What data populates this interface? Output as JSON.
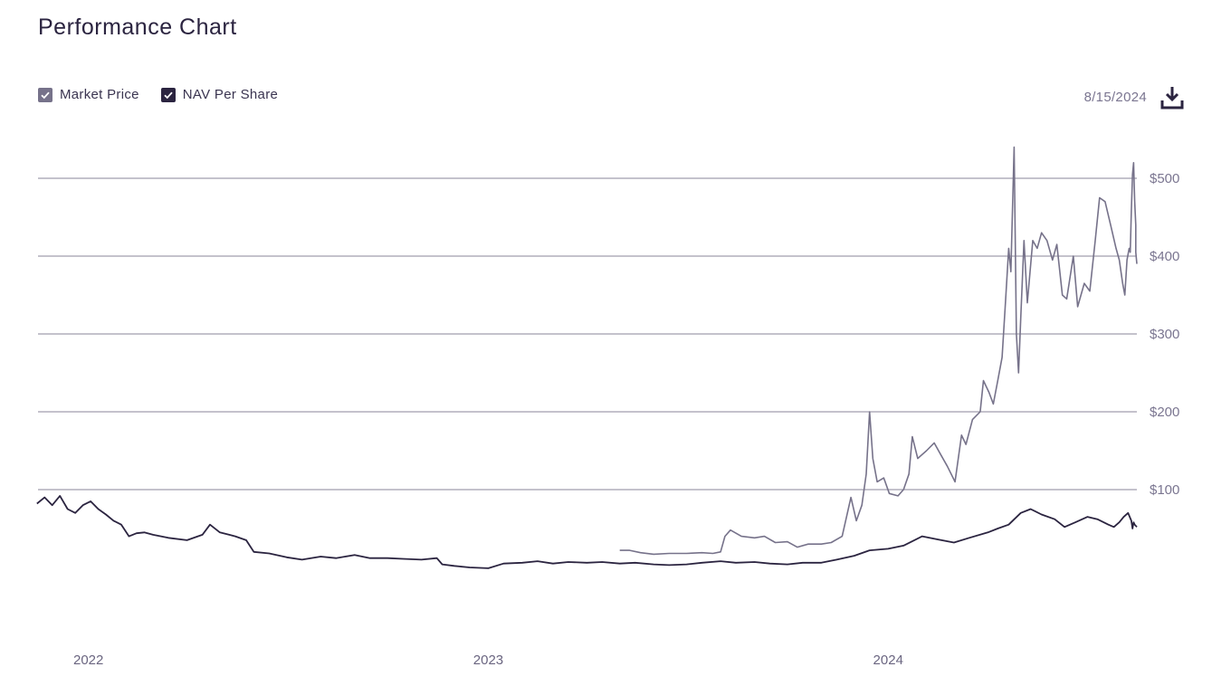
{
  "header": {
    "title": "Performance Chart",
    "date": "8/15/2024"
  },
  "legend": [
    {
      "label": "Market Price",
      "color": "#76728a",
      "checked": true
    },
    {
      "label": "NAV Per Share",
      "color": "#2b2440",
      "checked": true
    }
  ],
  "icons": {
    "download": "download-icon",
    "check": "check-icon"
  },
  "chart_data": {
    "type": "line",
    "title": "Performance Chart",
    "xlabel": "",
    "ylabel": "",
    "x_ticks": [
      "2022",
      "2023",
      "2024"
    ],
    "y_ticks": [
      "$100",
      "$200",
      "$300",
      "$400",
      "$500"
    ],
    "y_tick_values": [
      100,
      200,
      300,
      400,
      500
    ],
    "ylim": [
      -100,
      540
    ],
    "xlim": [
      "2021-11-15",
      "2024-08-15"
    ],
    "grid": "horizontal",
    "legend_position": "top-left",
    "series": [
      {
        "name": "Market Price",
        "color": "#76728a",
        "points": [
          [
            "2023-05-01",
            22
          ],
          [
            "2023-05-10",
            22
          ],
          [
            "2023-05-20",
            19
          ],
          [
            "2023-06-01",
            17
          ],
          [
            "2023-06-15",
            18
          ],
          [
            "2023-07-01",
            18
          ],
          [
            "2023-07-15",
            19
          ],
          [
            "2023-07-25",
            18
          ],
          [
            "2023-08-01",
            20
          ],
          [
            "2023-08-05",
            40
          ],
          [
            "2023-08-10",
            48
          ],
          [
            "2023-08-20",
            40
          ],
          [
            "2023-09-01",
            38
          ],
          [
            "2023-09-10",
            40
          ],
          [
            "2023-09-20",
            32
          ],
          [
            "2023-10-01",
            33
          ],
          [
            "2023-10-10",
            26
          ],
          [
            "2023-10-20",
            30
          ],
          [
            "2023-11-01",
            30
          ],
          [
            "2023-11-10",
            32
          ],
          [
            "2023-11-20",
            40
          ],
          [
            "2023-11-28",
            90
          ],
          [
            "2023-12-03",
            60
          ],
          [
            "2023-12-08",
            80
          ],
          [
            "2023-12-12",
            120
          ],
          [
            "2023-12-15",
            200
          ],
          [
            "2023-12-18",
            140
          ],
          [
            "2023-12-22",
            110
          ],
          [
            "2023-12-28",
            115
          ],
          [
            "2024-01-02",
            95
          ],
          [
            "2024-01-10",
            92
          ],
          [
            "2024-01-15",
            100
          ],
          [
            "2024-01-20",
            120
          ],
          [
            "2024-01-23",
            168
          ],
          [
            "2024-01-28",
            140
          ],
          [
            "2024-02-05",
            150
          ],
          [
            "2024-02-12",
            160
          ],
          [
            "2024-02-18",
            145
          ],
          [
            "2024-02-24",
            130
          ],
          [
            "2024-03-02",
            110
          ],
          [
            "2024-03-08",
            170
          ],
          [
            "2024-03-12",
            158
          ],
          [
            "2024-03-18",
            190
          ],
          [
            "2024-03-25",
            200
          ],
          [
            "2024-03-28",
            240
          ],
          [
            "2024-04-02",
            225
          ],
          [
            "2024-04-06",
            210
          ],
          [
            "2024-04-10",
            240
          ],
          [
            "2024-04-14",
            270
          ],
          [
            "2024-04-17",
            340
          ],
          [
            "2024-04-20",
            410
          ],
          [
            "2024-04-22",
            380
          ],
          [
            "2024-04-25",
            540
          ],
          [
            "2024-04-27",
            300
          ],
          [
            "2024-04-29",
            250
          ],
          [
            "2024-05-01",
            320
          ],
          [
            "2024-05-04",
            420
          ],
          [
            "2024-05-07",
            340
          ],
          [
            "2024-05-12",
            420
          ],
          [
            "2024-05-16",
            410
          ],
          [
            "2024-05-20",
            430
          ],
          [
            "2024-05-25",
            420
          ],
          [
            "2024-05-30",
            395
          ],
          [
            "2024-06-03",
            415
          ],
          [
            "2024-06-08",
            350
          ],
          [
            "2024-06-12",
            345
          ],
          [
            "2024-06-18",
            400
          ],
          [
            "2024-06-22",
            335
          ],
          [
            "2024-06-28",
            365
          ],
          [
            "2024-07-03",
            355
          ],
          [
            "2024-07-08",
            420
          ],
          [
            "2024-07-12",
            475
          ],
          [
            "2024-07-17",
            470
          ],
          [
            "2024-07-22",
            440
          ],
          [
            "2024-07-27",
            410
          ],
          [
            "2024-07-30",
            395
          ],
          [
            "2024-08-02",
            365
          ],
          [
            "2024-08-04",
            350
          ],
          [
            "2024-08-06",
            395
          ],
          [
            "2024-08-08",
            410
          ],
          [
            "2024-08-09",
            405
          ],
          [
            "2024-08-10",
            458
          ],
          [
            "2024-08-11",
            505
          ],
          [
            "2024-08-12",
            520
          ],
          [
            "2024-08-13",
            470
          ],
          [
            "2024-08-14",
            440
          ],
          [
            "2024-08-14",
            405
          ],
          [
            "2024-08-15",
            390
          ]
        ]
      },
      {
        "name": "NAV Per Share",
        "color": "#2b2440",
        "points": [
          [
            "2021-11-15",
            82
          ],
          [
            "2021-11-22",
            90
          ],
          [
            "2021-11-29",
            80
          ],
          [
            "2021-12-06",
            92
          ],
          [
            "2021-12-13",
            75
          ],
          [
            "2021-12-20",
            70
          ],
          [
            "2021-12-27",
            80
          ],
          [
            "2022-01-03",
            85
          ],
          [
            "2022-01-10",
            75
          ],
          [
            "2022-01-17",
            68
          ],
          [
            "2022-01-24",
            60
          ],
          [
            "2022-01-31",
            55
          ],
          [
            "2022-02-07",
            40
          ],
          [
            "2022-02-14",
            44
          ],
          [
            "2022-02-21",
            45
          ],
          [
            "2022-03-01",
            42
          ],
          [
            "2022-03-15",
            38
          ],
          [
            "2022-04-01",
            35
          ],
          [
            "2022-04-15",
            42
          ],
          [
            "2022-04-22",
            55
          ],
          [
            "2022-05-01",
            45
          ],
          [
            "2022-05-15",
            40
          ],
          [
            "2022-05-25",
            35
          ],
          [
            "2022-06-01",
            20
          ],
          [
            "2022-06-15",
            18
          ],
          [
            "2022-07-01",
            13
          ],
          [
            "2022-07-15",
            10
          ],
          [
            "2022-08-01",
            14
          ],
          [
            "2022-08-15",
            12
          ],
          [
            "2022-09-01",
            16
          ],
          [
            "2022-09-15",
            12
          ],
          [
            "2022-10-01",
            12
          ],
          [
            "2022-10-15",
            11
          ],
          [
            "2022-11-01",
            10
          ],
          [
            "2022-11-15",
            12
          ],
          [
            "2022-11-20",
            4
          ],
          [
            "2022-12-01",
            2
          ],
          [
            "2022-12-15",
            0
          ],
          [
            "2023-01-01",
            -1
          ],
          [
            "2023-01-15",
            5
          ],
          [
            "2023-02-01",
            6
          ],
          [
            "2023-02-15",
            8
          ],
          [
            "2023-03-01",
            5
          ],
          [
            "2023-03-15",
            7
          ],
          [
            "2023-04-01",
            6
          ],
          [
            "2023-04-15",
            7
          ],
          [
            "2023-05-01",
            5
          ],
          [
            "2023-05-15",
            6
          ],
          [
            "2023-06-01",
            4
          ],
          [
            "2023-06-15",
            3
          ],
          [
            "2023-07-01",
            4
          ],
          [
            "2023-07-15",
            6
          ],
          [
            "2023-08-01",
            8
          ],
          [
            "2023-08-15",
            6
          ],
          [
            "2023-09-01",
            7
          ],
          [
            "2023-09-15",
            5
          ],
          [
            "2023-10-01",
            4
          ],
          [
            "2023-10-15",
            6
          ],
          [
            "2023-11-01",
            6
          ],
          [
            "2023-11-15",
            10
          ],
          [
            "2023-12-01",
            15
          ],
          [
            "2023-12-15",
            22
          ],
          [
            "2024-01-01",
            24
          ],
          [
            "2024-01-15",
            28
          ],
          [
            "2024-02-01",
            40
          ],
          [
            "2024-02-15",
            36
          ],
          [
            "2024-03-01",
            32
          ],
          [
            "2024-03-15",
            38
          ],
          [
            "2024-04-01",
            45
          ],
          [
            "2024-04-10",
            50
          ],
          [
            "2024-04-20",
            55
          ],
          [
            "2024-05-01",
            70
          ],
          [
            "2024-05-10",
            75
          ],
          [
            "2024-05-20",
            68
          ],
          [
            "2024-06-01",
            62
          ],
          [
            "2024-06-10",
            52
          ],
          [
            "2024-06-20",
            58
          ],
          [
            "2024-07-01",
            65
          ],
          [
            "2024-07-10",
            62
          ],
          [
            "2024-07-20",
            55
          ],
          [
            "2024-07-25",
            52
          ],
          [
            "2024-07-30",
            58
          ],
          [
            "2024-08-03",
            65
          ],
          [
            "2024-08-07",
            70
          ],
          [
            "2024-08-10",
            60
          ],
          [
            "2024-08-11",
            50
          ],
          [
            "2024-08-12",
            58
          ],
          [
            "2024-08-13",
            55
          ],
          [
            "2024-08-15",
            52
          ]
        ]
      }
    ]
  }
}
